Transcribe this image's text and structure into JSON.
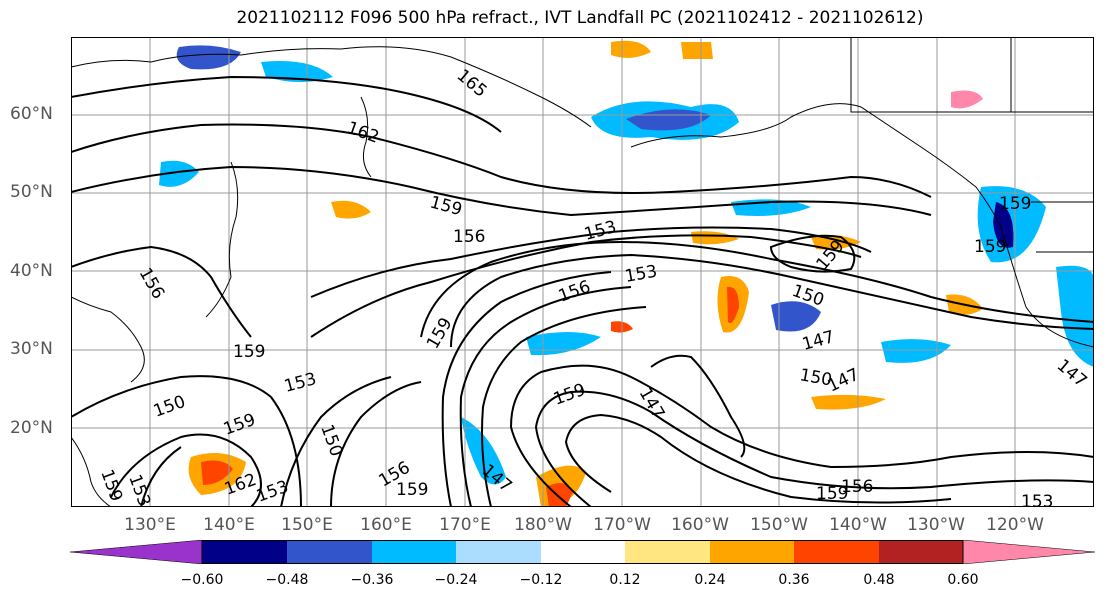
{
  "title": "2021102112 F096 500 hPa refract., IVT Landfall PC (2021102412 - 2021102612)",
  "lat_labels": [
    "60°N",
    "50°N",
    "40°N",
    "30°N",
    "20°N"
  ],
  "lon_labels": [
    "130°E",
    "140°E",
    "150°E",
    "160°E",
    "170°E",
    "180°W",
    "170°W",
    "160°W",
    "150°W",
    "140°W",
    "130°W",
    "120°W"
  ],
  "contour_labels": [
    "165",
    "162",
    "159",
    "156",
    "153",
    "150",
    "147"
  ],
  "colorbar": {
    "ticks": [
      "−0.60",
      "−0.48",
      "−0.36",
      "−0.24",
      "−0.12",
      "0.12",
      "0.24",
      "0.36",
      "0.48",
      "0.60"
    ],
    "colors": [
      "#9933cc",
      "#000088",
      "#3355cc",
      "#00bbff",
      "#aaddff",
      "#ffffff",
      "#ffe680",
      "#ffa500",
      "#ff4400",
      "#b22222",
      "#ff88aa"
    ]
  }
}
